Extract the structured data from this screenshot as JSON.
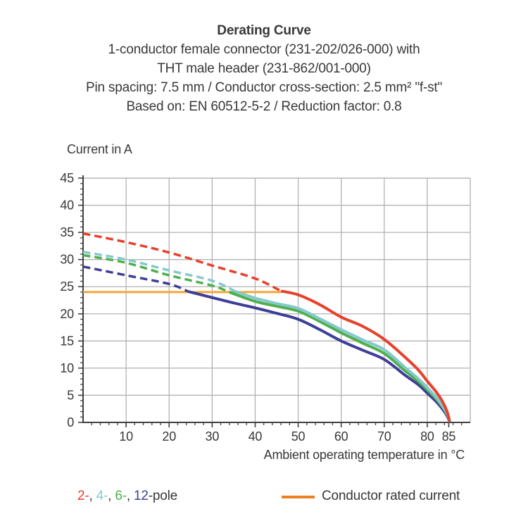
{
  "header": {
    "title": "Derating Curve",
    "lines": [
      "1-conductor female connector (231-202/026-000) with",
      "THT male header (231-862/001-000)",
      "Pin spacing: 7.5 mm / Conductor cross-section: 2.5 mm² \"f-st\"",
      "Based on: EN 60512-5-2 / Reduction factor: 0.8"
    ]
  },
  "chart_data": {
    "type": "line",
    "title": "Derating Curve",
    "xlabel": "Ambient operating temperature in °C",
    "ylabel": "Current in A",
    "xlim": [
      0,
      90
    ],
    "ylim": [
      0,
      45
    ],
    "x_tick_labels": [
      10,
      20,
      30,
      40,
      50,
      60,
      70,
      80,
      85
    ],
    "x_gridlines": [
      10,
      20,
      30,
      40,
      50,
      60,
      70,
      80
    ],
    "x_minor_tick_step": 2,
    "y_tick_labels": [
      0,
      5,
      10,
      15,
      20,
      25,
      30,
      35,
      40,
      45
    ],
    "y_gridlines": [
      5,
      10,
      15,
      20,
      25,
      30,
      35,
      40,
      45
    ],
    "y_minor_tick_step": 1,
    "grid": true,
    "colors": {
      "grid": "#b2b2b2",
      "axis": "#404040",
      "text": "#383838",
      "rated_line": "#f5a733",
      "rated_swatch": "#ee7f1f",
      "pole2": "#e8402c",
      "pole4": "#85c9cd",
      "pole6": "#4faf4c",
      "pole12": "#3e3e99"
    },
    "rated_current": {
      "name": "Conductor rated current",
      "value": 24,
      "points": [
        [
          0,
          24
        ],
        [
          46,
          24
        ]
      ]
    },
    "series": [
      {
        "name": "12-pole",
        "color_key": "pole12",
        "dashed_points": [
          [
            0,
            28.7
          ],
          [
            10,
            27.1
          ],
          [
            20,
            25.5
          ],
          [
            24.5,
            24.1
          ]
        ],
        "solid_points": [
          [
            24.5,
            24.1
          ],
          [
            30,
            23.0
          ],
          [
            35,
            22.0
          ],
          [
            40,
            21.1
          ],
          [
            45,
            20.1
          ],
          [
            50,
            19.0
          ],
          [
            55,
            17.1
          ],
          [
            60,
            15.0
          ],
          [
            65,
            13.3
          ],
          [
            70,
            11.6
          ],
          [
            75,
            8.6
          ],
          [
            78,
            6.9
          ],
          [
            80,
            5.4
          ],
          [
            82,
            3.9
          ],
          [
            83.5,
            2.5
          ],
          [
            84.6,
            1.2
          ],
          [
            85.2,
            0.05
          ]
        ]
      },
      {
        "name": "6-pole",
        "color_key": "pole6",
        "dashed_points": [
          [
            0,
            30.8
          ],
          [
            10,
            29.4
          ],
          [
            20,
            27.1
          ],
          [
            30,
            25.2
          ],
          [
            34,
            24.0
          ]
        ],
        "solid_points": [
          [
            34,
            24.0
          ],
          [
            40,
            22.3
          ],
          [
            45,
            21.4
          ],
          [
            50,
            20.5
          ],
          [
            55,
            18.6
          ],
          [
            60,
            16.5
          ],
          [
            65,
            14.6
          ],
          [
            70,
            12.7
          ],
          [
            75,
            9.4
          ],
          [
            78,
            7.5
          ],
          [
            80,
            6.0
          ],
          [
            82,
            4.4
          ],
          [
            83.5,
            2.9
          ],
          [
            84.6,
            1.5
          ],
          [
            85.2,
            0.1
          ]
        ]
      },
      {
        "name": "4-pole",
        "color_key": "pole4",
        "dashed_points": [
          [
            0,
            31.4
          ],
          [
            10,
            30.0
          ],
          [
            20,
            28.0
          ],
          [
            30,
            26.1
          ],
          [
            35.5,
            24.1
          ]
        ],
        "solid_points": [
          [
            35.5,
            24.1
          ],
          [
            40,
            22.9
          ],
          [
            45,
            21.9
          ],
          [
            50,
            21.0
          ],
          [
            55,
            19.1
          ],
          [
            60,
            17.1
          ],
          [
            65,
            15.2
          ],
          [
            70,
            13.4
          ],
          [
            75,
            10.0
          ],
          [
            78,
            8.0
          ],
          [
            80,
            6.4
          ],
          [
            82,
            4.7
          ],
          [
            83.5,
            3.1
          ],
          [
            84.6,
            1.6
          ],
          [
            85.2,
            0.15
          ]
        ]
      },
      {
        "name": "2-pole",
        "color_key": "pole2",
        "dashed_points": [
          [
            0,
            34.8
          ],
          [
            10,
            33.2
          ],
          [
            20,
            31.3
          ],
          [
            30,
            28.9
          ],
          [
            40,
            26.5
          ],
          [
            46,
            24.2
          ]
        ],
        "solid_points": [
          [
            46,
            24.2
          ],
          [
            50,
            23.5
          ],
          [
            55,
            21.7
          ],
          [
            60,
            19.4
          ],
          [
            65,
            17.7
          ],
          [
            70,
            15.3
          ],
          [
            75,
            11.9
          ],
          [
            78,
            9.6
          ],
          [
            80,
            7.6
          ],
          [
            82,
            5.7
          ],
          [
            83.5,
            3.9
          ],
          [
            84.6,
            2.0
          ],
          [
            85.2,
            0.2
          ]
        ]
      }
    ]
  },
  "legend": {
    "poles": {
      "parts": [
        {
          "text": "2-",
          "color_key": "pole2"
        },
        {
          "text": ", ",
          "color_key": "text"
        },
        {
          "text": "4-",
          "color_key": "pole4"
        },
        {
          "text": ", ",
          "color_key": "text"
        },
        {
          "text": "6-",
          "color_key": "pole6"
        },
        {
          "text": ", ",
          "color_key": "text"
        },
        {
          "text": "12",
          "color_key": "pole12"
        },
        {
          "text": "-pole",
          "color_key": "text"
        }
      ]
    },
    "rated_label": "Conductor rated current"
  }
}
